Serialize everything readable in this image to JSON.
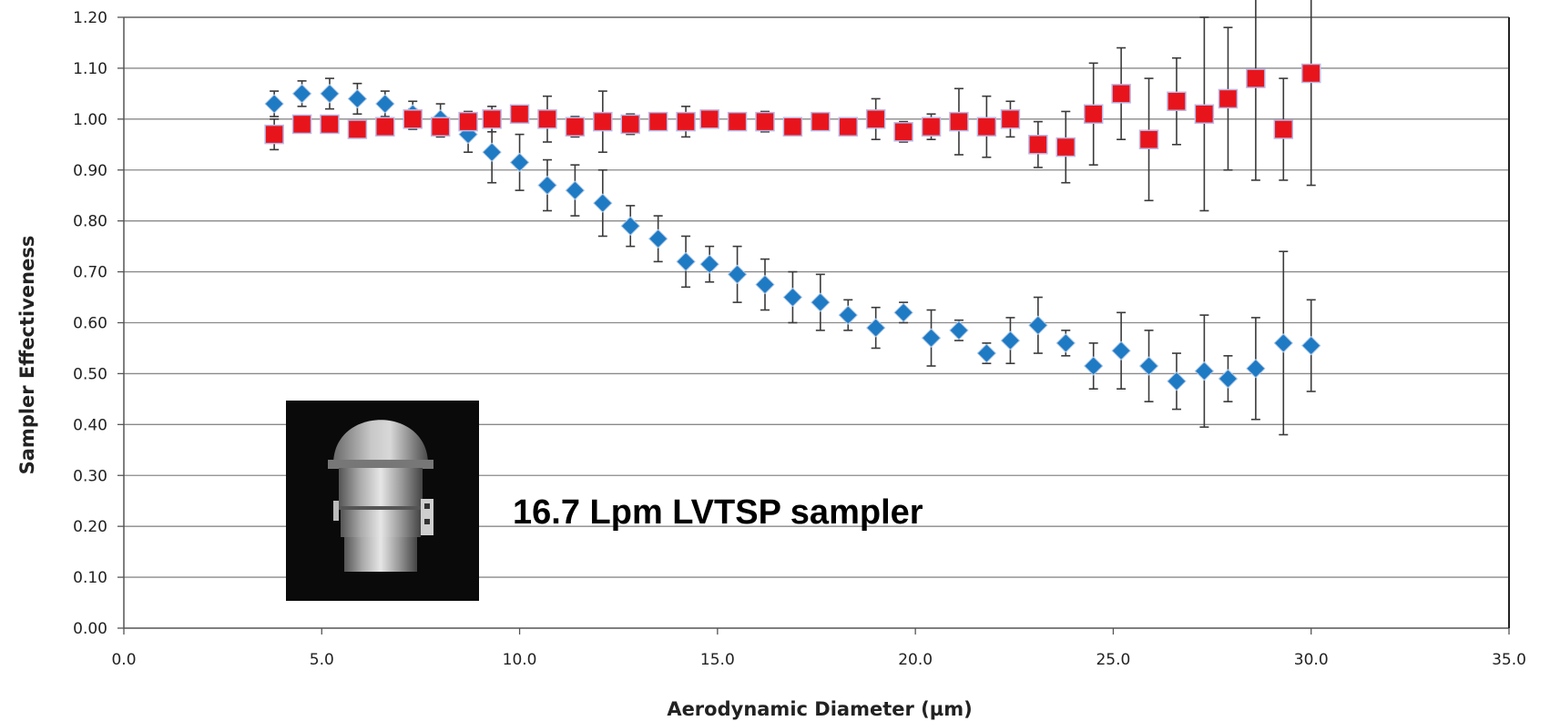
{
  "chart_data": {
    "type": "scatter",
    "title": "",
    "xlabel": "Aerodynamic Diameter (µm)",
    "ylabel": "Sampler Effectiveness",
    "xlim": [
      0,
      35
    ],
    "ylim": [
      0,
      1.2
    ],
    "x_ticks": [
      "0.0",
      "5.0",
      "10.0",
      "15.0",
      "20.0",
      "25.0",
      "30.0",
      "35.0"
    ],
    "y_ticks": [
      "0.00",
      "0.10",
      "0.20",
      "0.30",
      "0.40",
      "0.50",
      "0.60",
      "0.70",
      "0.80",
      "0.90",
      "1.00",
      "1.10",
      "1.20"
    ],
    "grid": "horizontal",
    "legend": "none",
    "annotation": "16.7 Lpm LVTSP sampler",
    "image_label": "sampler photo",
    "series": [
      {
        "marker": "diamond",
        "color": "#1f7ac4",
        "points": [
          {
            "x": 3.8,
            "y": 1.03,
            "err": 0.025
          },
          {
            "x": 4.5,
            "y": 1.05,
            "err": 0.025
          },
          {
            "x": 5.2,
            "y": 1.05,
            "err": 0.03
          },
          {
            "x": 5.9,
            "y": 1.04,
            "err": 0.03
          },
          {
            "x": 6.6,
            "y": 1.03,
            "err": 0.025
          },
          {
            "x": 7.3,
            "y": 1.01,
            "err": 0.025
          },
          {
            "x": 8.0,
            "y": 1.0,
            "err": 0.03
          },
          {
            "x": 8.7,
            "y": 0.97,
            "err": 0.035
          },
          {
            "x": 9.3,
            "y": 0.935,
            "err": 0.06
          },
          {
            "x": 10.0,
            "y": 0.915,
            "err": 0.055
          },
          {
            "x": 10.7,
            "y": 0.87,
            "err": 0.05
          },
          {
            "x": 11.4,
            "y": 0.86,
            "err": 0.05
          },
          {
            "x": 12.1,
            "y": 0.835,
            "err": 0.065
          },
          {
            "x": 12.8,
            "y": 0.79,
            "err": 0.04
          },
          {
            "x": 13.5,
            "y": 0.765,
            "err": 0.045
          },
          {
            "x": 14.2,
            "y": 0.72,
            "err": 0.05
          },
          {
            "x": 14.8,
            "y": 0.715,
            "err": 0.035
          },
          {
            "x": 15.5,
            "y": 0.695,
            "err": 0.055
          },
          {
            "x": 16.2,
            "y": 0.675,
            "err": 0.05
          },
          {
            "x": 16.9,
            "y": 0.65,
            "err": 0.05
          },
          {
            "x": 17.6,
            "y": 0.64,
            "err": 0.055
          },
          {
            "x": 18.3,
            "y": 0.615,
            "err": 0.03
          },
          {
            "x": 19.0,
            "y": 0.59,
            "err": 0.04
          },
          {
            "x": 19.7,
            "y": 0.62,
            "err": 0.02
          },
          {
            "x": 20.4,
            "y": 0.57,
            "err": 0.055
          },
          {
            "x": 21.1,
            "y": 0.585,
            "err": 0.02
          },
          {
            "x": 21.8,
            "y": 0.54,
            "err": 0.02
          },
          {
            "x": 22.4,
            "y": 0.565,
            "err": 0.045
          },
          {
            "x": 23.1,
            "y": 0.595,
            "err": 0.055
          },
          {
            "x": 23.8,
            "y": 0.56,
            "err": 0.025
          },
          {
            "x": 24.5,
            "y": 0.515,
            "err": 0.045
          },
          {
            "x": 25.2,
            "y": 0.545,
            "err": 0.075
          },
          {
            "x": 25.9,
            "y": 0.515,
            "err": 0.07
          },
          {
            "x": 26.6,
            "y": 0.485,
            "err": 0.055
          },
          {
            "x": 27.3,
            "y": 0.505,
            "err": 0.11
          },
          {
            "x": 27.9,
            "y": 0.49,
            "err": 0.045
          },
          {
            "x": 28.6,
            "y": 0.51,
            "err": 0.1
          },
          {
            "x": 29.3,
            "y": 0.56,
            "err": 0.18
          },
          {
            "x": 30.0,
            "y": 0.555,
            "err": 0.09
          }
        ]
      },
      {
        "marker": "square",
        "color": "#e8141c",
        "points": [
          {
            "x": 3.8,
            "y": 0.97,
            "err": 0.03
          },
          {
            "x": 4.5,
            "y": 0.99,
            "err": 0.01
          },
          {
            "x": 5.2,
            "y": 0.99,
            "err": 0.01
          },
          {
            "x": 5.9,
            "y": 0.98,
            "err": 0.015
          },
          {
            "x": 6.6,
            "y": 0.985,
            "err": 0.015
          },
          {
            "x": 7.3,
            "y": 1.0,
            "err": 0.02
          },
          {
            "x": 8.0,
            "y": 0.985,
            "err": 0.02
          },
          {
            "x": 8.7,
            "y": 0.995,
            "err": 0.02
          },
          {
            "x": 9.3,
            "y": 1.0,
            "err": 0.025
          },
          {
            "x": 10.0,
            "y": 1.01,
            "err": 0.015
          },
          {
            "x": 10.7,
            "y": 1.0,
            "err": 0.045
          },
          {
            "x": 11.4,
            "y": 0.985,
            "err": 0.02
          },
          {
            "x": 12.1,
            "y": 0.995,
            "err": 0.06
          },
          {
            "x": 12.8,
            "y": 0.99,
            "err": 0.02
          },
          {
            "x": 13.5,
            "y": 0.995,
            "err": 0.015
          },
          {
            "x": 14.2,
            "y": 0.995,
            "err": 0.03
          },
          {
            "x": 14.8,
            "y": 1.0,
            "err": 0.015
          },
          {
            "x": 15.5,
            "y": 0.995,
            "err": 0.01
          },
          {
            "x": 16.2,
            "y": 0.995,
            "err": 0.02
          },
          {
            "x": 16.9,
            "y": 0.985,
            "err": 0.01
          },
          {
            "x": 17.6,
            "y": 0.995,
            "err": 0.015
          },
          {
            "x": 18.3,
            "y": 0.985,
            "err": 0.01
          },
          {
            "x": 19.0,
            "y": 1.0,
            "err": 0.04
          },
          {
            "x": 19.7,
            "y": 0.975,
            "err": 0.02
          },
          {
            "x": 20.4,
            "y": 0.985,
            "err": 0.025
          },
          {
            "x": 21.1,
            "y": 0.995,
            "err": 0.065
          },
          {
            "x": 21.8,
            "y": 0.985,
            "err": 0.06
          },
          {
            "x": 22.4,
            "y": 1.0,
            "err": 0.035
          },
          {
            "x": 23.1,
            "y": 0.95,
            "err": 0.045
          },
          {
            "x": 23.8,
            "y": 0.945,
            "err": 0.07
          },
          {
            "x": 24.5,
            "y": 1.01,
            "err": 0.1
          },
          {
            "x": 25.2,
            "y": 1.05,
            "err": 0.09
          },
          {
            "x": 25.9,
            "y": 0.96,
            "err": 0.12
          },
          {
            "x": 26.6,
            "y": 1.035,
            "err": 0.085
          },
          {
            "x": 27.3,
            "y": 1.01,
            "err": 0.19
          },
          {
            "x": 27.9,
            "y": 1.04,
            "err": 0.14
          },
          {
            "x": 28.6,
            "y": 1.08,
            "err": 0.2
          },
          {
            "x": 29.3,
            "y": 0.98,
            "err": 0.1
          },
          {
            "x": 30.0,
            "y": 1.09,
            "err": 0.22
          }
        ]
      }
    ]
  }
}
